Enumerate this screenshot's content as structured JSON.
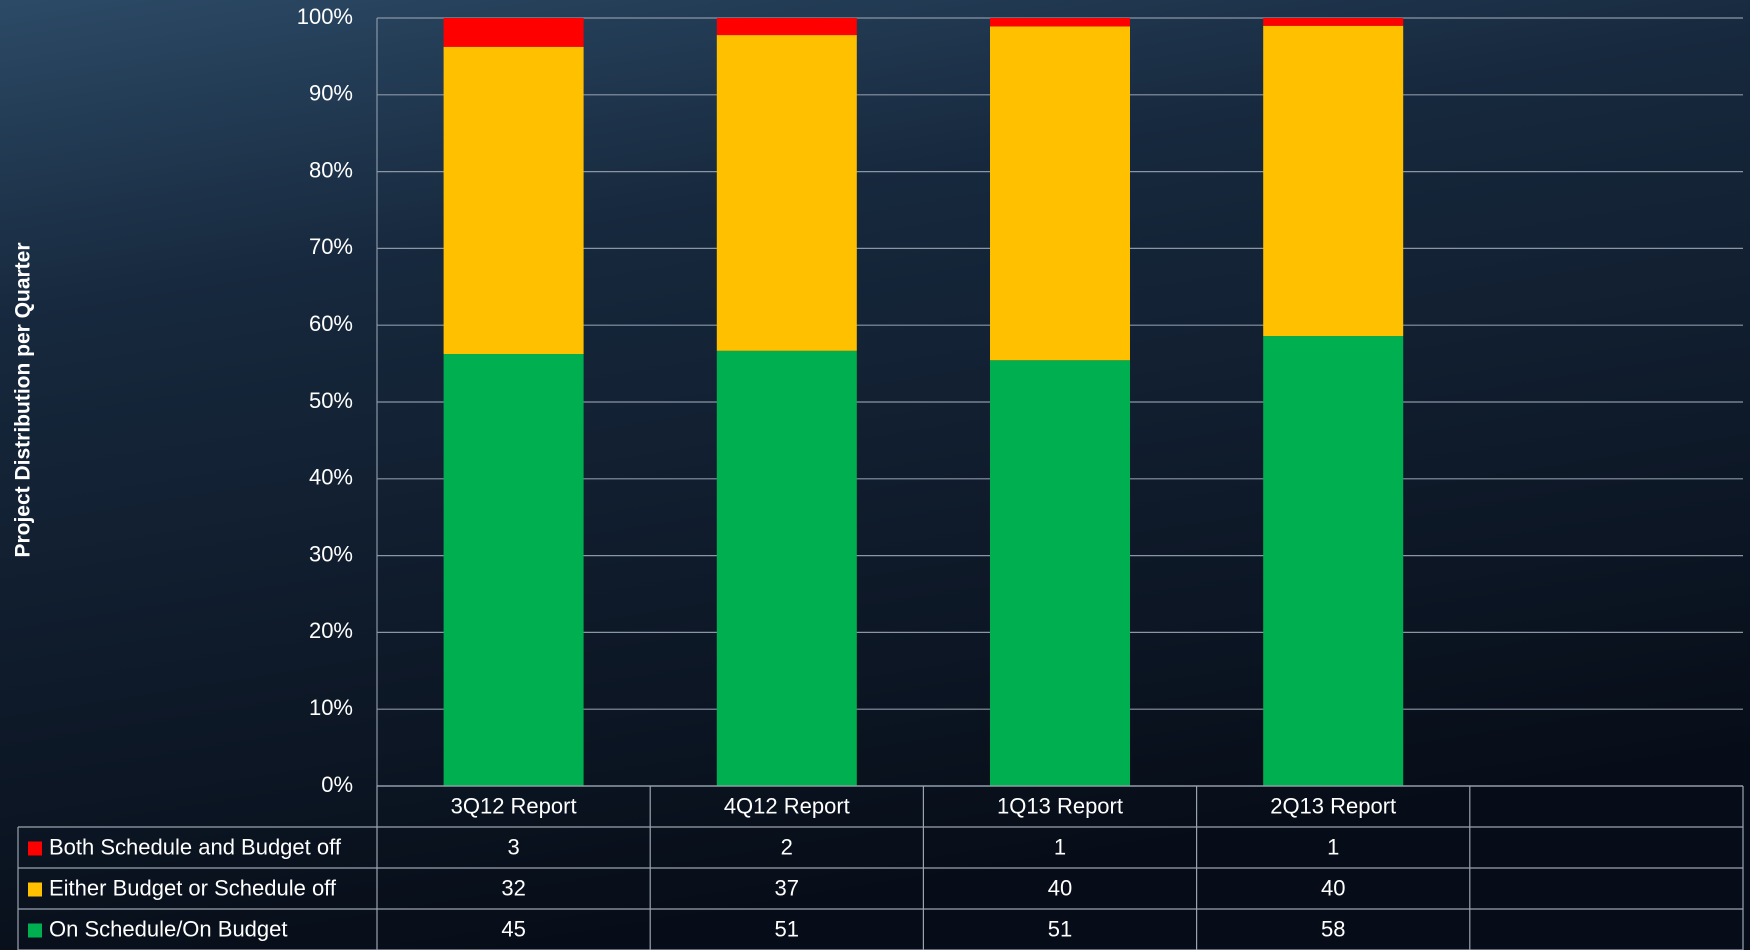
{
  "chart_data": {
    "type": "bar",
    "stacked": "percent",
    "y_label": "Project Distribution per Quarter",
    "categories": [
      "3Q12 Report",
      "4Q12 Report",
      "1Q13 Report",
      "2Q13 Report"
    ],
    "series": [
      {
        "name": "Both Schedule and Budget off",
        "color": "#ff0000",
        "values": [
          3,
          2,
          1,
          1
        ]
      },
      {
        "name": "Either Budget or Schedule off",
        "color": "#ffc000",
        "values": [
          32,
          37,
          40,
          40
        ]
      },
      {
        "name": "On Schedule/On Budget",
        "color": "#00b050",
        "values": [
          45,
          51,
          51,
          58
        ]
      }
    ],
    "ylim": [
      0,
      100
    ],
    "yticks": [
      {
        "value": 0,
        "label": "0%"
      },
      {
        "value": 10,
        "label": "10%"
      },
      {
        "value": 20,
        "label": "20%"
      },
      {
        "value": 30,
        "label": "30%"
      },
      {
        "value": 40,
        "label": "40%"
      },
      {
        "value": 50,
        "label": "50%"
      },
      {
        "value": 60,
        "label": "60%"
      },
      {
        "value": 70,
        "label": "70%"
      },
      {
        "value": 80,
        "label": "80%"
      },
      {
        "value": 90,
        "label": "90%"
      },
      {
        "value": 100,
        "label": "100%"
      }
    ],
    "grid": true,
    "data_table": true
  }
}
